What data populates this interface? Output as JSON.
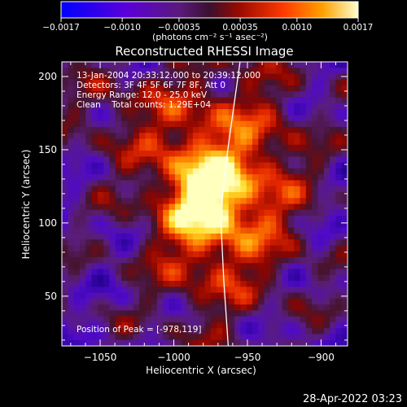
{
  "chart_data": {
    "type": "heatmap",
    "title": "Reconstructed RHESSI Image",
    "xlabel": "Heliocentric X (arcsec)",
    "ylabel": "Heliocentric Y (arcsec)",
    "xlim": [
      -1076,
      -882
    ],
    "ylim": [
      16,
      210
    ],
    "xticks": [
      -1050,
      -1000,
      -950,
      -900
    ],
    "yticks": [
      50,
      100,
      150,
      200
    ],
    "xtick_labels": [
      "−1050",
      "−1000",
      "−950",
      "−900"
    ],
    "ytick_labels": [
      "50",
      "100",
      "150",
      "200"
    ],
    "colorbar": {
      "min": -0.0017,
      "max": 0.0017,
      "ticks": [
        -0.0017,
        -0.001,
        -0.00035,
        0.00035,
        0.001,
        0.0017
      ],
      "tick_labels": [
        "−0.0017",
        "−0.0010",
        "−0.00035",
        "0.00035",
        "0.0010",
        "0.0017"
      ],
      "unit_label": "(photons cm⁻² s⁻¹ asec⁻²)"
    },
    "annotations": {
      "time": "13-Jan-2004 20:33:12.000 to 20:39:12.000",
      "detectors": "Detectors: 3F 4F 5F 6F 7F 8F, Att 0",
      "energy": "Energy Range: 12.0 - 25.0 keV",
      "method": "Clean    Total counts: 1.29E+04",
      "peak": "Position of Peak = [-978,119]"
    },
    "peak": {
      "x": -978,
      "y": 119
    },
    "limb_curve": [
      {
        "x": -963,
        "y": 16
      },
      {
        "x": -966,
        "y": 60
      },
      {
        "x": -968,
        "y": 100
      },
      {
        "x": -966,
        "y": 130
      },
      {
        "x": -962,
        "y": 160
      },
      {
        "x": -955,
        "y": 210
      }
    ],
    "colors": {
      "background": "#000000",
      "low": "#1800ff",
      "mid": "#3a1244",
      "high": "#ffff80"
    }
  },
  "footer": {
    "timestamp": "28-Apr-2022 03:23"
  }
}
